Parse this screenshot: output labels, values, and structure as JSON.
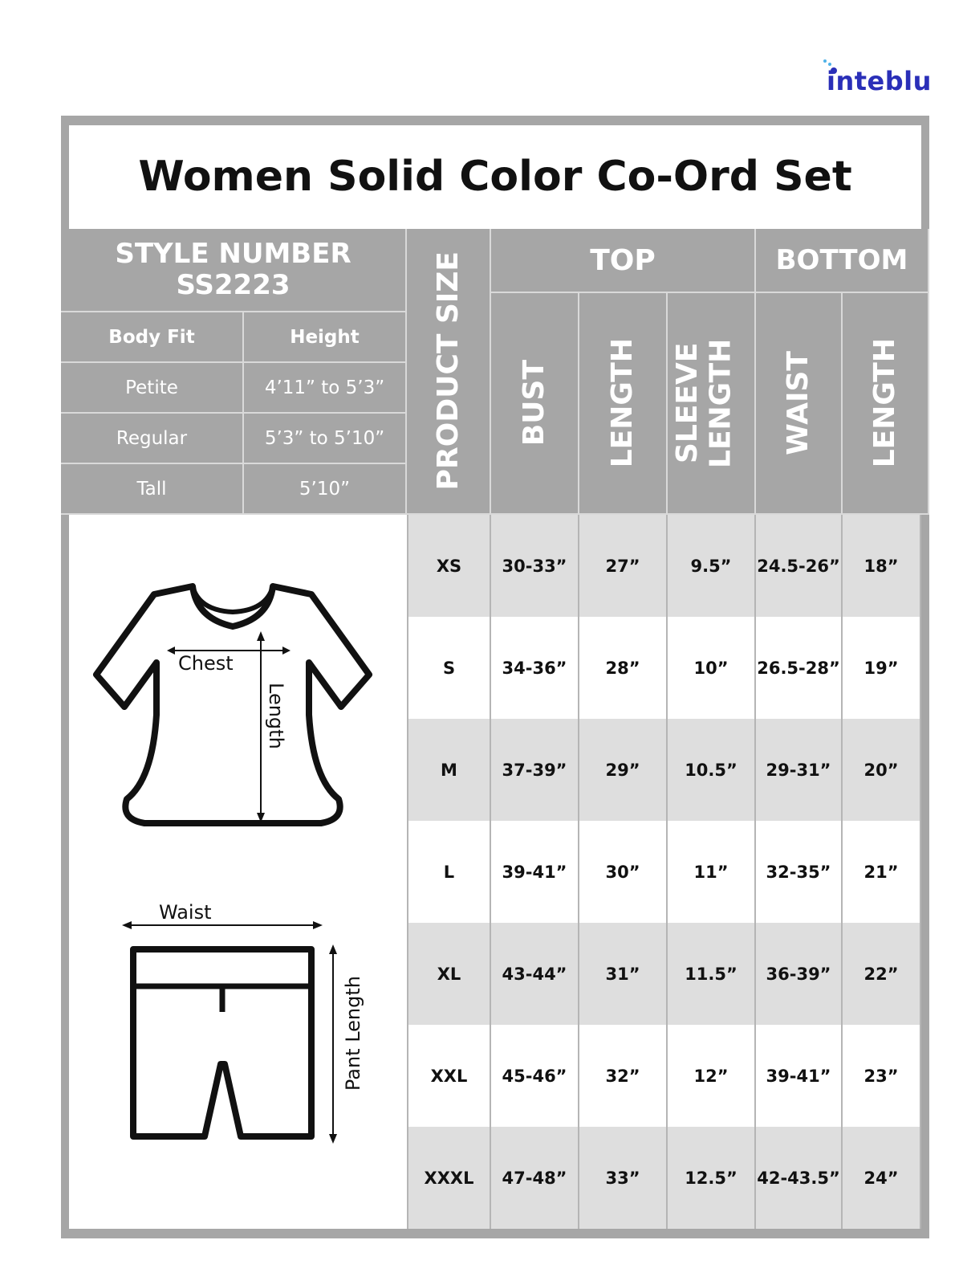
{
  "brand": {
    "logo_text": "inteblu",
    "color": "#2a2fb8"
  },
  "title": "Women Solid Color Co-Ord Set",
  "style_block": {
    "label": "STYLE NUMBER",
    "number": "SS2223",
    "columns": [
      "Body Fit",
      "Height"
    ],
    "rows": [
      [
        "Petite",
        "4’11” to 5’3”"
      ],
      [
        "Regular",
        "5’3” to 5’10”"
      ],
      [
        "Tall",
        "5’10”"
      ]
    ]
  },
  "table": {
    "product_size_header": "PRODUCT SIZE",
    "groups": [
      "TOP",
      "BOTTOM"
    ],
    "columns": [
      "BUST",
      "LENGTH",
      "SLEEVE LENGTH",
      "WAIST",
      "LENGTH"
    ],
    "rows": [
      [
        "XS",
        "30-33”",
        "27”",
        "9.5”",
        "24.5-26”",
        "18”"
      ],
      [
        "S",
        "34-36”",
        "28”",
        "10”",
        "26.5-28”",
        "19”"
      ],
      [
        "M",
        "37-39”",
        "29”",
        "10.5”",
        "29-31”",
        "20”"
      ],
      [
        "L",
        "39-41”",
        "30”",
        "11”",
        "32-35”",
        "21”"
      ],
      [
        "XL",
        "43-44”",
        "31”",
        "11.5”",
        "36-39”",
        "22”"
      ],
      [
        "XXL",
        "45-46”",
        "32”",
        "12”",
        "39-41”",
        "23”"
      ],
      [
        "XXXL",
        "47-48”",
        "33”",
        "12.5”",
        "42-43.5”",
        "24”"
      ]
    ]
  },
  "diagrams": {
    "top": {
      "chest_label": "Chest",
      "length_label": "Length"
    },
    "bottom": {
      "waist_label": "Waist",
      "length_label": "Pant Length"
    }
  },
  "colors": {
    "header_gray": "#a6a6a6",
    "row_shade": "#dedede"
  }
}
